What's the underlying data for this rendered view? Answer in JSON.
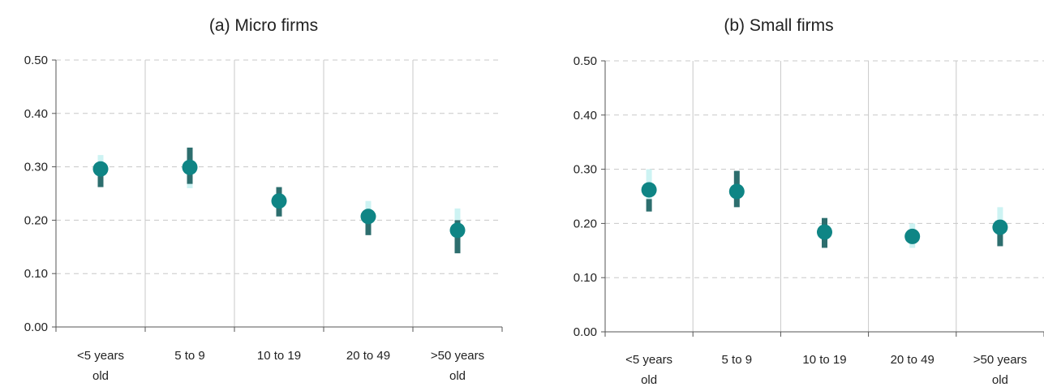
{
  "chart_data": [
    {
      "type": "scatter",
      "title": "(a) Micro firms",
      "categories": [
        [
          "<5 years",
          "old"
        ],
        [
          "5 to 9"
        ],
        [
          "10 to 19"
        ],
        [
          "20 to 49"
        ],
        [
          ">50 years",
          "old"
        ]
      ],
      "ylim": [
        0,
        0.5
      ],
      "yticks": [
        "0.00",
        "0.10",
        "0.20",
        "0.30",
        "0.40",
        "0.50"
      ],
      "grid": "horizontal dashed, vertical solid",
      "series": [
        {
          "values": [
            0.296,
            0.299,
            0.236,
            0.207,
            0.181
          ]
        }
      ],
      "error_bars": {
        "light": [
          [
            0.28,
            0.322
          ],
          [
            0.26,
            0.31
          ],
          [
            0.23,
            0.24
          ],
          [
            0.19,
            0.236
          ],
          [
            0.15,
            0.222
          ]
        ],
        "dark": [
          [
            0.262,
            0.3
          ],
          [
            0.268,
            0.336
          ],
          [
            0.207,
            0.262
          ],
          [
            0.172,
            0.215
          ],
          [
            0.138,
            0.2
          ]
        ]
      }
    },
    {
      "type": "scatter",
      "title": "(b) Small firms",
      "categories": [
        [
          "<5 years",
          "old"
        ],
        [
          "5 to 9"
        ],
        [
          "10 to 19"
        ],
        [
          "20 to 49"
        ],
        [
          ">50 years",
          "old"
        ]
      ],
      "ylim": [
        0,
        0.5
      ],
      "yticks": [
        "0.00",
        "0.10",
        "0.20",
        "0.30",
        "0.40",
        "0.50"
      ],
      "grid": "horizontal dashed, vertical solid",
      "series": [
        {
          "values": [
            0.262,
            0.259,
            0.184,
            0.176,
            0.193
          ]
        }
      ],
      "error_bars": {
        "light": [
          [
            0.245,
            0.3
          ],
          [
            0.245,
            0.27
          ],
          [
            0.16,
            0.21
          ],
          [
            0.155,
            0.2
          ],
          [
            0.17,
            0.23
          ]
        ],
        "dark": [
          [
            0.222,
            0.245
          ],
          [
            0.23,
            0.297
          ],
          [
            0.155,
            0.21
          ],
          [
            0.17,
            0.185
          ],
          [
            0.158,
            0.2
          ]
        ]
      }
    }
  ],
  "colors": {
    "point": "#0f8585",
    "dark_bar": "#2d6e6e",
    "light_bar": "#cdf3f3",
    "grid": "#c8c8c8",
    "axis": "#555555"
  }
}
